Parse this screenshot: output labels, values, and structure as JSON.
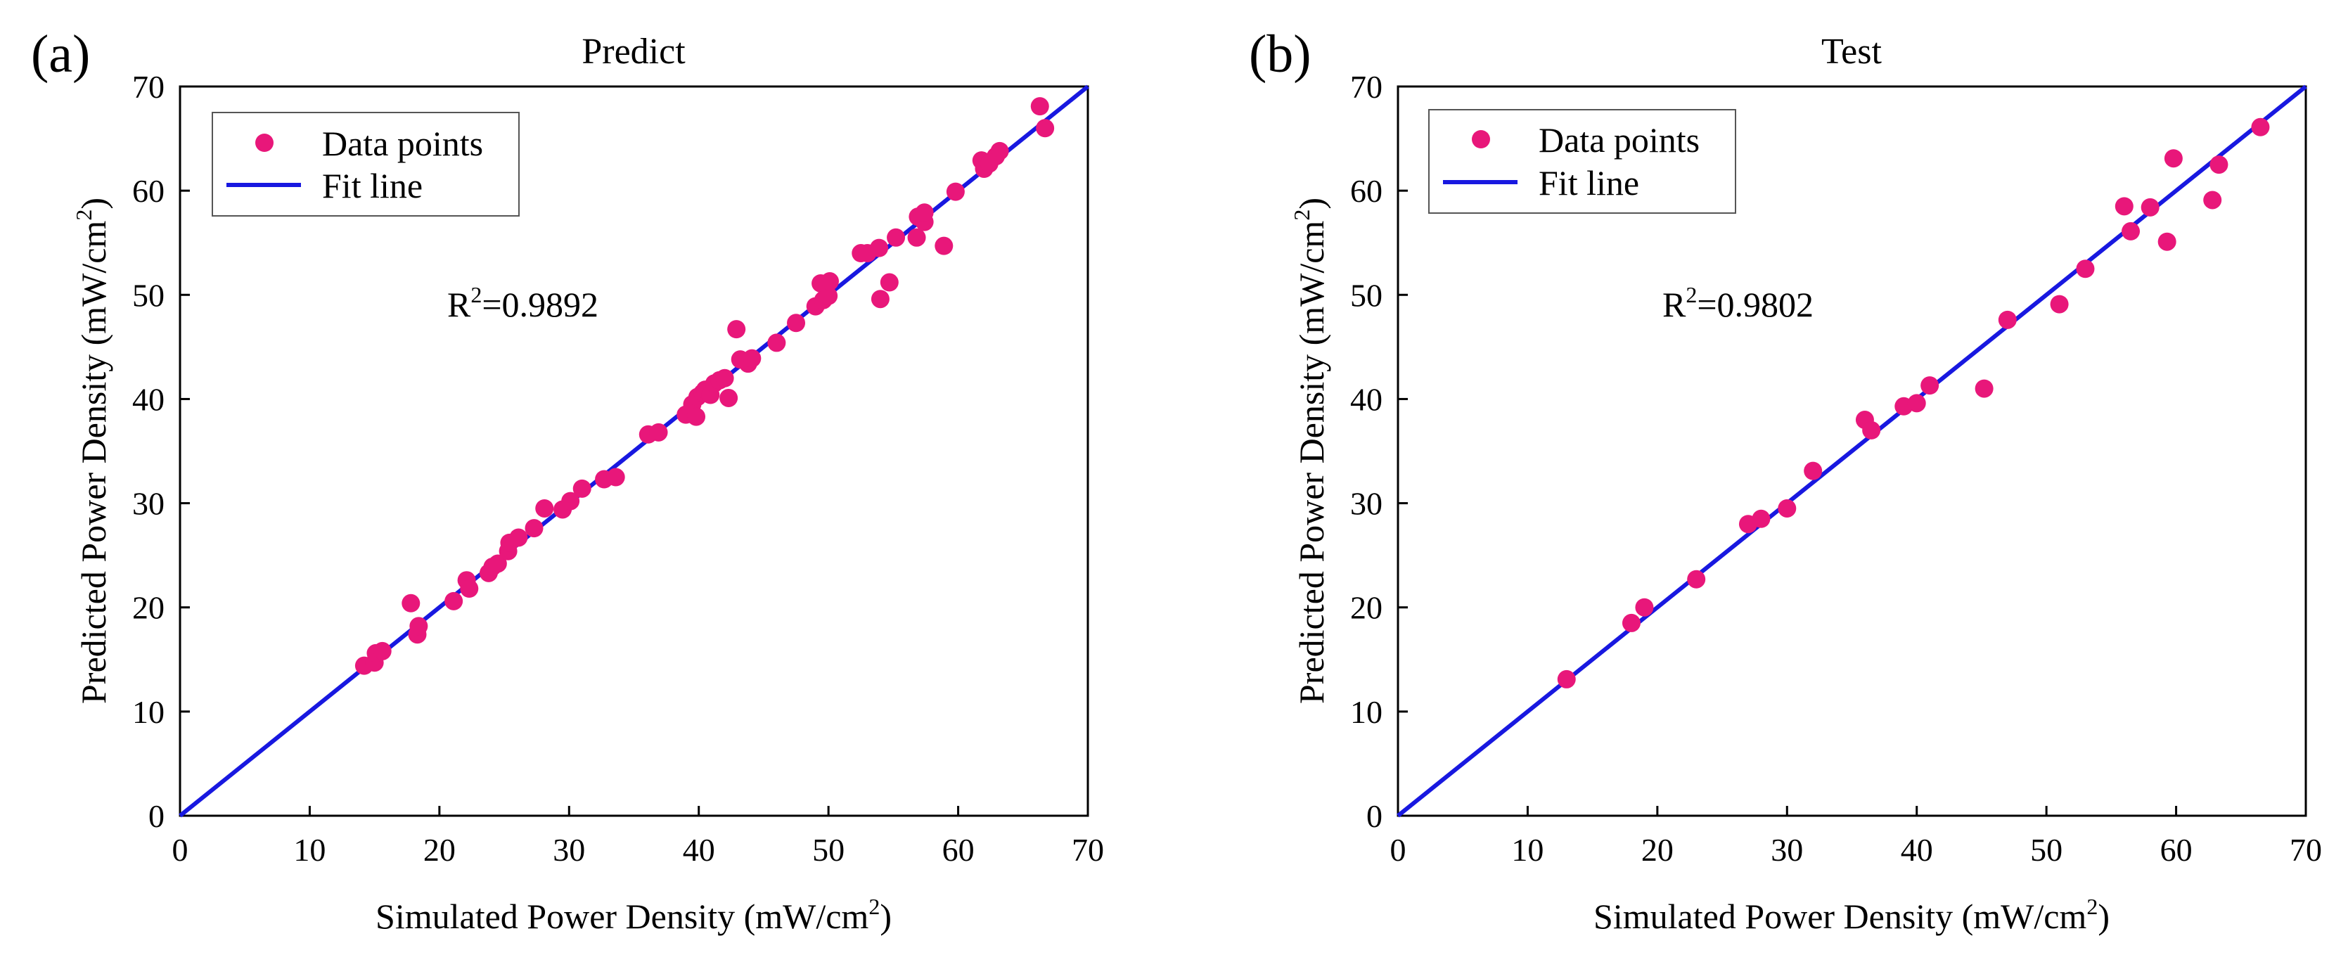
{
  "chart_data": [
    {
      "type": "scatter",
      "panel_label": "(a)",
      "title": "Predict",
      "xlabel_main": "Simulated Power Density (mW/cm",
      "xlabel_sup": "2",
      "xlabel_end": ")",
      "ylabel_main": "Predicted Power Density (mW/cm",
      "ylabel_sup": "2",
      "ylabel_end": ")",
      "xlim": [
        0,
        70
      ],
      "ylim": [
        0,
        70
      ],
      "xticks": [
        "0",
        "10",
        "20",
        "30",
        "40",
        "50",
        "60",
        "70"
      ],
      "yticks": [
        "0",
        "10",
        "20",
        "30",
        "40",
        "50",
        "60",
        "70"
      ],
      "r2_prefix": "R",
      "r2_sup": "2",
      "r2_value": "=0.9892",
      "legend": {
        "points_label": "Data points",
        "line_label": "Fit line",
        "placement": "top-left"
      },
      "fit_line": {
        "x": [
          0,
          70
        ],
        "y": [
          0,
          70
        ]
      },
      "colors": {
        "points": "#e8177a",
        "line": "#1818e0"
      },
      "points": [
        {
          "x": 14.2,
          "y": 14.4
        },
        {
          "x": 15.0,
          "y": 14.7
        },
        {
          "x": 15.1,
          "y": 15.6
        },
        {
          "x": 15.6,
          "y": 15.8
        },
        {
          "x": 17.8,
          "y": 20.4
        },
        {
          "x": 18.3,
          "y": 17.4
        },
        {
          "x": 18.4,
          "y": 18.2
        },
        {
          "x": 21.1,
          "y": 20.6
        },
        {
          "x": 22.1,
          "y": 22.6
        },
        {
          "x": 22.3,
          "y": 21.8
        },
        {
          "x": 23.8,
          "y": 23.3
        },
        {
          "x": 24.1,
          "y": 23.9
        },
        {
          "x": 24.5,
          "y": 24.2
        },
        {
          "x": 25.3,
          "y": 25.4
        },
        {
          "x": 25.4,
          "y": 26.2
        },
        {
          "x": 26.1,
          "y": 26.7
        },
        {
          "x": 27.3,
          "y": 27.6
        },
        {
          "x": 28.1,
          "y": 29.5
        },
        {
          "x": 29.5,
          "y": 29.4
        },
        {
          "x": 30.1,
          "y": 30.2
        },
        {
          "x": 31.0,
          "y": 31.4
        },
        {
          "x": 32.7,
          "y": 32.3
        },
        {
          "x": 33.6,
          "y": 32.5
        },
        {
          "x": 36.1,
          "y": 36.6
        },
        {
          "x": 36.9,
          "y": 36.8
        },
        {
          "x": 39.0,
          "y": 38.5
        },
        {
          "x": 39.5,
          "y": 39.5
        },
        {
          "x": 39.8,
          "y": 38.3
        },
        {
          "x": 39.9,
          "y": 40.2
        },
        {
          "x": 40.3,
          "y": 40.6
        },
        {
          "x": 40.5,
          "y": 40.9
        },
        {
          "x": 40.9,
          "y": 40.4
        },
        {
          "x": 41.2,
          "y": 41.5
        },
        {
          "x": 41.6,
          "y": 41.8
        },
        {
          "x": 42.0,
          "y": 42.0
        },
        {
          "x": 42.3,
          "y": 40.1
        },
        {
          "x": 42.9,
          "y": 46.7
        },
        {
          "x": 43.2,
          "y": 43.8
        },
        {
          "x": 43.8,
          "y": 43.4
        },
        {
          "x": 44.1,
          "y": 43.9
        },
        {
          "x": 46.0,
          "y": 45.4
        },
        {
          "x": 47.5,
          "y": 47.3
        },
        {
          "x": 49.0,
          "y": 48.9
        },
        {
          "x": 49.4,
          "y": 51.1
        },
        {
          "x": 49.6,
          "y": 49.5
        },
        {
          "x": 50.0,
          "y": 49.9
        },
        {
          "x": 50.1,
          "y": 51.3
        },
        {
          "x": 52.5,
          "y": 54.0
        },
        {
          "x": 53.0,
          "y": 54.0
        },
        {
          "x": 53.9,
          "y": 54.5
        },
        {
          "x": 54.0,
          "y": 49.6
        },
        {
          "x": 54.7,
          "y": 51.2
        },
        {
          "x": 55.2,
          "y": 55.5
        },
        {
          "x": 56.8,
          "y": 55.5
        },
        {
          "x": 56.9,
          "y": 57.5
        },
        {
          "x": 57.4,
          "y": 57.0
        },
        {
          "x": 57.4,
          "y": 57.9
        },
        {
          "x": 58.9,
          "y": 54.7
        },
        {
          "x": 59.8,
          "y": 59.9
        },
        {
          "x": 61.8,
          "y": 62.9
        },
        {
          "x": 62.0,
          "y": 62.1
        },
        {
          "x": 62.4,
          "y": 62.6
        },
        {
          "x": 62.9,
          "y": 63.3
        },
        {
          "x": 63.2,
          "y": 63.8
        },
        {
          "x": 66.3,
          "y": 68.1
        },
        {
          "x": 66.7,
          "y": 66.0
        }
      ]
    },
    {
      "type": "scatter",
      "panel_label": "(b)",
      "title": "Test",
      "xlabel_main": "Simulated Power Density (mW/cm",
      "xlabel_sup": "2",
      "xlabel_end": ")",
      "ylabel_main": "Predicted Power Density (mW/cm",
      "ylabel_sup": "2",
      "ylabel_end": ")",
      "xlim": [
        0,
        70
      ],
      "ylim": [
        0,
        70
      ],
      "xticks": [
        "0",
        "10",
        "20",
        "30",
        "40",
        "50",
        "60",
        "70"
      ],
      "yticks": [
        "0",
        "10",
        "20",
        "30",
        "40",
        "50",
        "60",
        "70"
      ],
      "r2_prefix": "R",
      "r2_sup": "2",
      "r2_value": "=0.9802",
      "legend": {
        "points_label": "Data points",
        "line_label": "Fit line",
        "placement": "top-left"
      },
      "fit_line": {
        "x": [
          0,
          70
        ],
        "y": [
          0,
          70
        ]
      },
      "colors": {
        "points": "#e8177a",
        "line": "#1818e0"
      },
      "points": [
        {
          "x": 13.0,
          "y": 13.1
        },
        {
          "x": 18.0,
          "y": 18.5
        },
        {
          "x": 19.0,
          "y": 20.0
        },
        {
          "x": 23.0,
          "y": 22.7
        },
        {
          "x": 27.0,
          "y": 28.0
        },
        {
          "x": 28.0,
          "y": 28.5
        },
        {
          "x": 30.0,
          "y": 29.5
        },
        {
          "x": 32.0,
          "y": 33.1
        },
        {
          "x": 36.0,
          "y": 38.0
        },
        {
          "x": 36.5,
          "y": 37.0
        },
        {
          "x": 39.0,
          "y": 39.3
        },
        {
          "x": 40.0,
          "y": 39.6
        },
        {
          "x": 41.0,
          "y": 41.3
        },
        {
          "x": 45.2,
          "y": 41.0
        },
        {
          "x": 47.0,
          "y": 47.6
        },
        {
          "x": 51.0,
          "y": 49.1
        },
        {
          "x": 53.0,
          "y": 52.5
        },
        {
          "x": 56.0,
          "y": 58.5
        },
        {
          "x": 56.5,
          "y": 56.1
        },
        {
          "x": 58.0,
          "y": 58.4
        },
        {
          "x": 59.3,
          "y": 55.1
        },
        {
          "x": 59.8,
          "y": 63.1
        },
        {
          "x": 62.8,
          "y": 59.1
        },
        {
          "x": 63.3,
          "y": 62.5
        },
        {
          "x": 66.5,
          "y": 66.1
        }
      ]
    }
  ]
}
